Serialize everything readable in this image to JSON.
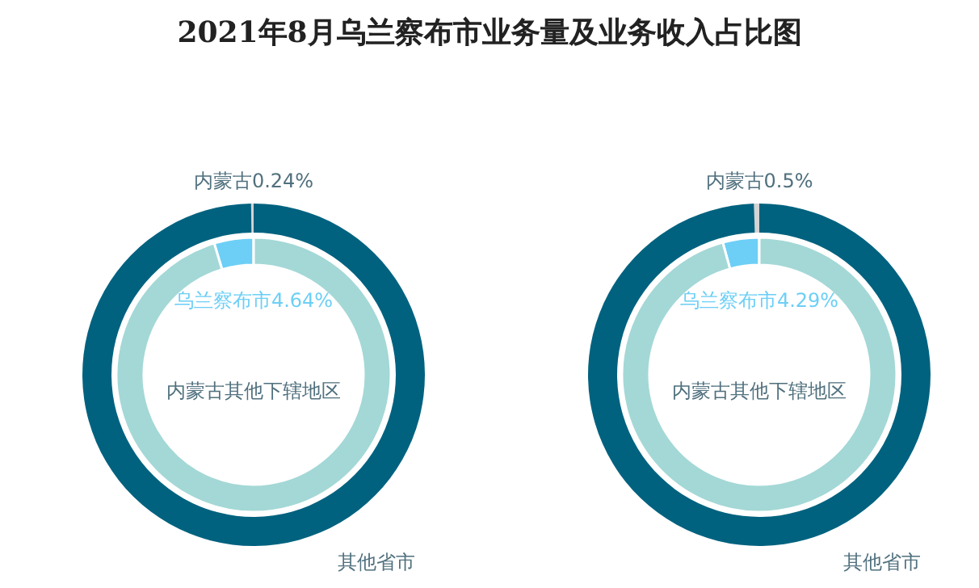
{
  "chart_data": [
    {
      "type": "donut",
      "title": "2021年8月乌兰察布市业务量及业务收入占比图",
      "categories": [
        "内蒙古",
        "其他省市"
      ],
      "values": [
        0.24,
        99.76
      ],
      "colors": [
        "#d4d4d4",
        "#00627f"
      ],
      "value_labels": [
        "0.24%",
        null
      ]
    },
    {
      "type": "donut",
      "categories": [
        "乌兰察布市",
        "内蒙古其他下辖地区"
      ],
      "values": [
        4.64,
        95.36
      ],
      "colors": [
        "#6dcff6",
        "#a3d8d6"
      ],
      "value_labels": [
        "4.64%",
        null
      ]
    },
    {
      "type": "donut",
      "categories": [
        "内蒙古",
        "其他省市"
      ],
      "values": [
        0.5,
        99.5
      ],
      "colors": [
        "#d4d4d4",
        "#00627f"
      ],
      "value_labels": [
        "0.5%",
        null
      ]
    },
    {
      "type": "donut",
      "categories": [
        "乌兰察布市",
        "内蒙古其他下辖地区"
      ],
      "values": [
        4.29,
        95.71
      ],
      "colors": [
        "#6dcff6",
        "#a3d8d6"
      ],
      "value_labels": [
        "4.29%",
        null
      ]
    }
  ]
}
